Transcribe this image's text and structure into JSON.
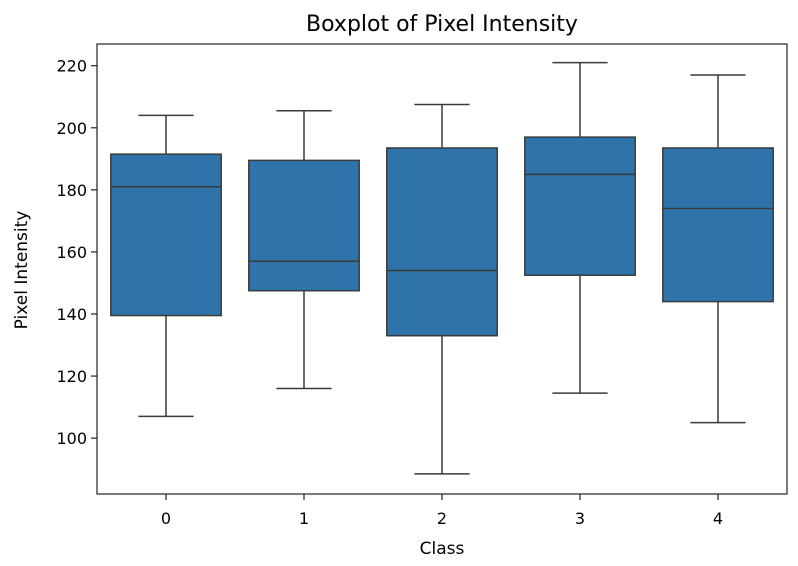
{
  "chart_data": {
    "type": "boxplot",
    "title": "Boxplot of Pixel Intensity",
    "xlabel": "Class",
    "ylabel": "Pixel Intensity",
    "categories": [
      "0",
      "1",
      "2",
      "3",
      "4"
    ],
    "ylim": [
      82,
      227
    ],
    "yticks": [
      100,
      120,
      140,
      160,
      180,
      200,
      220
    ],
    "box_color": "#2e74ab",
    "line_color": "#3a3a3a",
    "boxes": [
      {
        "category": "0",
        "whislo": 107,
        "q1": 139.5,
        "med": 181,
        "q3": 191.5,
        "whishi": 204
      },
      {
        "category": "1",
        "whislo": 116,
        "q1": 147.5,
        "med": 157,
        "q3": 189.5,
        "whishi": 205.5
      },
      {
        "category": "2",
        "whislo": 88.5,
        "q1": 133,
        "med": 154,
        "q3": 193.5,
        "whishi": 207.5
      },
      {
        "category": "3",
        "whislo": 114.5,
        "q1": 152.5,
        "med": 185,
        "q3": 197,
        "whishi": 221
      },
      {
        "category": "4",
        "whislo": 105,
        "q1": 144,
        "med": 174,
        "q3": 193.5,
        "whishi": 217
      }
    ],
    "grid": false,
    "legend": "none"
  }
}
